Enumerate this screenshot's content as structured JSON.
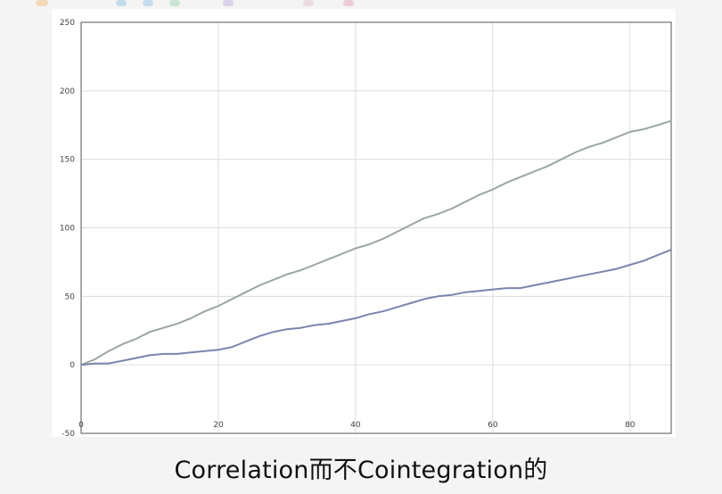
{
  "caption": "Correlation而不Cointegration的",
  "chart_data": {
    "type": "line",
    "title": "",
    "xlabel": "",
    "ylabel": "",
    "xlim": [
      0,
      86
    ],
    "ylim": [
      -50,
      250
    ],
    "grid": true,
    "x_ticks": [
      0,
      20,
      40,
      60,
      80
    ],
    "y_ticks": [
      -50,
      0,
      50,
      100,
      150,
      200,
      250
    ],
    "series": [
      {
        "color": "#9aa6a0",
        "x": [
          0,
          2,
          4,
          6,
          8,
          10,
          12,
          14,
          16,
          18,
          20,
          22,
          24,
          26,
          28,
          30,
          32,
          34,
          36,
          38,
          40,
          42,
          44,
          46,
          48,
          50,
          52,
          54,
          56,
          58,
          60,
          62,
          64,
          66,
          68,
          70,
          72,
          74,
          76,
          78,
          80,
          82,
          84,
          86
        ],
        "values": [
          0,
          4,
          10,
          15,
          19,
          24,
          27,
          30,
          34,
          39,
          43,
          48,
          53,
          58,
          62,
          66,
          69,
          73,
          77,
          81,
          85,
          88,
          92,
          97,
          102,
          107,
          110,
          114,
          119,
          124,
          128,
          133,
          137,
          141,
          145,
          150,
          155,
          159,
          162,
          166,
          170,
          172,
          175,
          178
        ]
      },
      {
        "color": "#7b84ad",
        "x": [
          0,
          2,
          4,
          6,
          8,
          10,
          12,
          14,
          16,
          18,
          20,
          22,
          24,
          26,
          28,
          30,
          32,
          34,
          36,
          38,
          40,
          42,
          44,
          46,
          48,
          50,
          52,
          54,
          56,
          58,
          60,
          62,
          64,
          66,
          68,
          70,
          72,
          74,
          76,
          78,
          80,
          82,
          84,
          86
        ],
        "values": [
          0,
          1,
          1,
          3,
          5,
          7,
          8,
          8,
          9,
          10,
          11,
          13,
          17,
          21,
          24,
          26,
          27,
          29,
          30,
          32,
          34,
          37,
          39,
          42,
          45,
          48,
          50,
          51,
          53,
          54,
          55,
          56,
          56,
          58,
          60,
          62,
          64,
          66,
          68,
          70,
          73,
          76,
          80,
          84
        ]
      }
    ]
  },
  "top_strip_colors": [
    "#f2c38a",
    "#9ec9e8",
    "#9ec9e8",
    "#a6d8b8",
    "#c9b4e6",
    "#e8c3d4",
    "#e8a7b9"
  ]
}
